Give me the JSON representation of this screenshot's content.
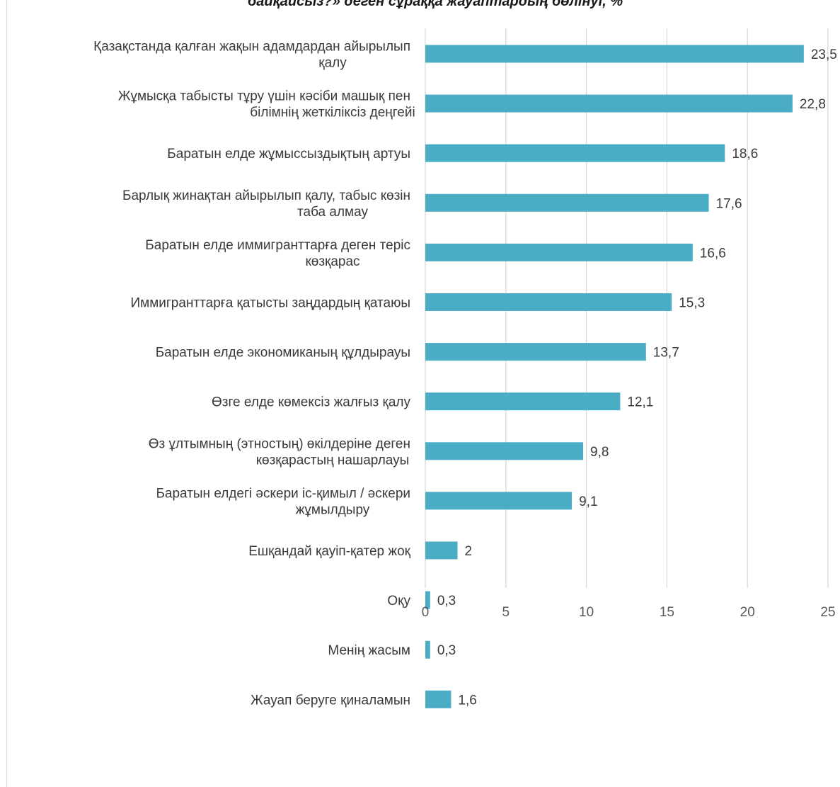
{
  "chart_data": {
    "type": "bar",
    "orientation": "horizontal",
    "title": "байқайсыз?» деген сұраққа жауаптардың бөлінуі, %",
    "categories": [
      [
        "Қазақстанда қалған жақын адамдардан айырылып",
        "қалу"
      ],
      [
        "Жұмысқа табысты тұру үшін кәсіби машық пен",
        "білімнің жеткіліксіз деңгейі"
      ],
      [
        "Баратын елде жұмыссыздықтың артуы"
      ],
      [
        "Барлық жинақтан айырылып қалу, табыс көзін",
        "таба алмау"
      ],
      [
        "Баратын елде иммигранттарға деген теріс",
        "көзқарас"
      ],
      [
        "Иммигранттарға қатысты заңдардың қатаюы"
      ],
      [
        "Баратын елде экономиканың құлдырауы"
      ],
      [
        "Өзге елде көмексіз жалғыз қалу"
      ],
      [
        "Өз ұлтымның (этностың) өкілдеріне деген",
        "көзқарастың нашарлауы"
      ],
      [
        "Баратын елдегі әскери іс-қимыл / әскери",
        "жұмылдыру"
      ],
      [
        "Ешқандай қауіп-қатер жоқ"
      ],
      [
        "Оқу"
      ],
      [
        "Менің жасым"
      ],
      [
        "Жауап беруге қиналамын"
      ]
    ],
    "values": [
      23.5,
      22.8,
      18.6,
      17.6,
      16.6,
      15.3,
      13.7,
      12.1,
      9.8,
      9.1,
      2,
      0.3,
      0.3,
      1.6
    ],
    "value_labels": [
      "23,5",
      "22,8",
      "18,6",
      "17,6",
      "16,6",
      "15,3",
      "13,7",
      "12,1",
      "9,8",
      "9,1",
      "2",
      "0,3",
      "0,3",
      "1,6"
    ],
    "xticks": [
      0,
      5,
      10,
      15,
      20,
      25
    ],
    "xlim": [
      0,
      25
    ],
    "grid": true,
    "legend": "none",
    "bar_color": "#4bacc6",
    "grid_color": "#d9d9d9"
  }
}
